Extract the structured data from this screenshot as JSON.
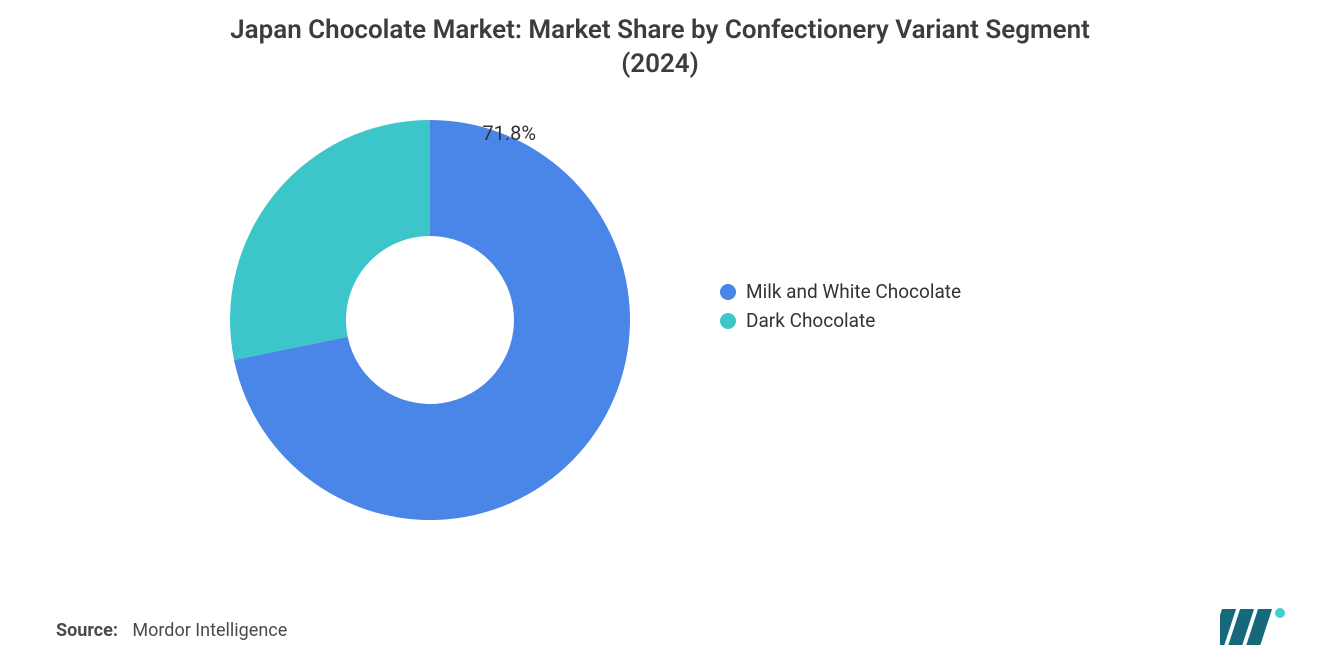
{
  "title_line1": "Japan Chocolate Market: Market Share by Confectionery Variant Segment",
  "title_line2": "(2024)",
  "source_label": "Source:",
  "source_value": "Mordor Intelligence",
  "chart": {
    "type": "donut",
    "inner_radius_ratio": 0.42,
    "background_color": "#ffffff",
    "start_angle_deg": 0,
    "label_fontsize": 20,
    "slices": [
      {
        "label": "Milk and White Chocolate",
        "value": 71.8,
        "color": "#4a86e8",
        "show_label": true,
        "label_text": "71.8%"
      },
      {
        "label": "Dark Chocolate",
        "value": 28.2,
        "color": "#3cc6c9",
        "show_label": false,
        "label_text": ""
      }
    ]
  },
  "legend": {
    "items": [
      {
        "label": "Milk and White Chocolate",
        "color": "#4a86e8"
      },
      {
        "label": "Dark Chocolate",
        "color": "#3cc6c9"
      }
    ],
    "fontsize": 19
  },
  "logo": {
    "bars_color": "#16697a",
    "dot_color": "#3fd0c9"
  }
}
